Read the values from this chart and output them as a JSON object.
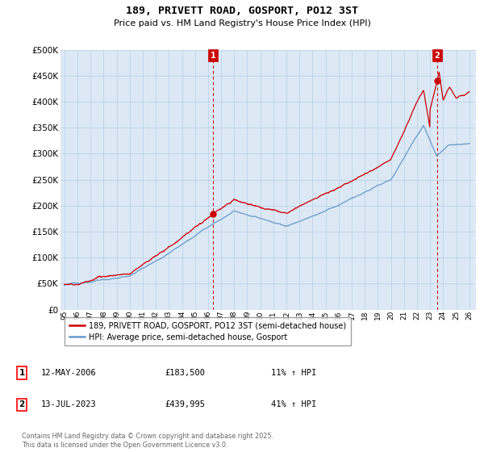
{
  "title": "189, PRIVETT ROAD, GOSPORT, PO12 3ST",
  "subtitle": "Price paid vs. HM Land Registry's House Price Index (HPI)",
  "legend_property": "189, PRIVETT ROAD, GOSPORT, PO12 3ST (semi-detached house)",
  "legend_hpi": "HPI: Average price, semi-detached house, Gosport",
  "annotation1_date": "12-MAY-2006",
  "annotation1_price": 183500,
  "annotation1_price_str": "£183,500",
  "annotation1_pct": "11% ↑ HPI",
  "annotation2_date": "13-JUL-2023",
  "annotation2_price": 439995,
  "annotation2_price_str": "£439,995",
  "annotation2_pct": "41% ↑ HPI",
  "footer": "Contains HM Land Registry data © Crown copyright and database right 2025.\nThis data is licensed under the Open Government Licence v3.0.",
  "property_color": "#cc0000",
  "hpi_color": "#6699cc",
  "annotation_color": "#cc0000",
  "chart_bg": "#dce9f5",
  "ylim": [
    0,
    500000
  ],
  "yticks": [
    0,
    50000,
    100000,
    150000,
    200000,
    250000,
    300000,
    350000,
    400000,
    450000,
    500000
  ],
  "sale1_year": 2006.37,
  "sale1_price": 183500,
  "sale2_year": 2023.54,
  "sale2_price": 439995,
  "bg_color": "#ffffff",
  "grid_color": "#aec8e0"
}
